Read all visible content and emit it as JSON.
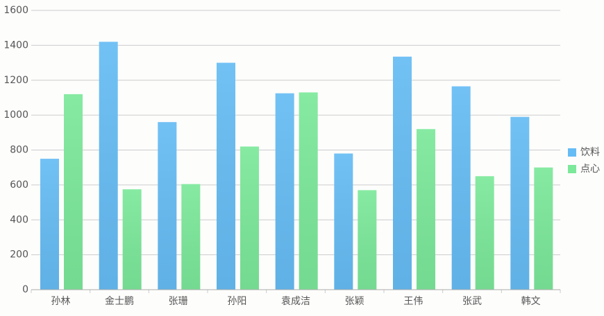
{
  "chart_data": {
    "type": "bar",
    "categories": [
      "孙林",
      "金士鹏",
      "张珊",
      "孙阳",
      "袁成洁",
      "张颖",
      "王伟",
      "张武",
      "韩文"
    ],
    "series": [
      {
        "name": "饮料",
        "color": "#66bcf4",
        "values": [
          750,
          1420,
          960,
          1300,
          1125,
          780,
          1335,
          1165,
          990
        ]
      },
      {
        "name": "点心",
        "color": "#7ce89a",
        "values": [
          1120,
          575,
          605,
          820,
          1130,
          570,
          920,
          650,
          700
        ]
      }
    ],
    "ylim": [
      0,
      1600
    ],
    "yticks": [
      0,
      200,
      400,
      600,
      800,
      1000,
      1200,
      1400,
      1600
    ],
    "grid": true,
    "legend": "right"
  }
}
